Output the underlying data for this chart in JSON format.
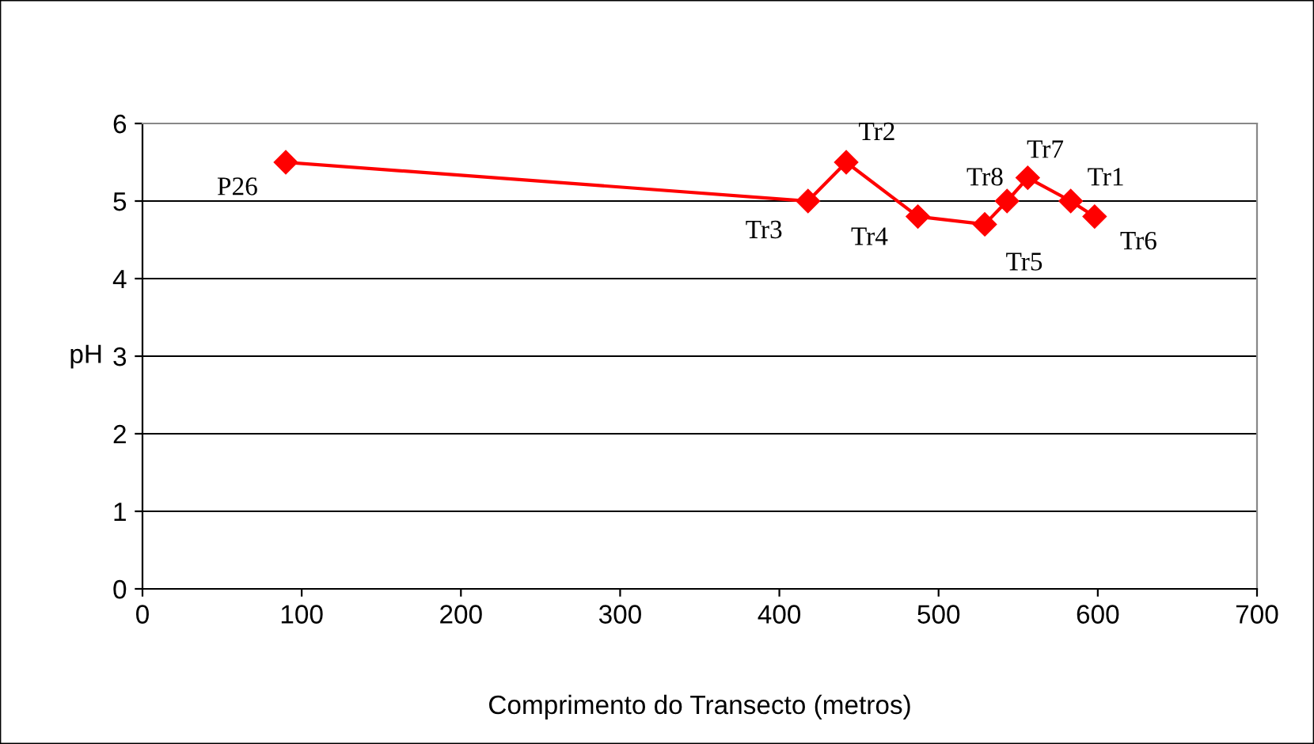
{
  "chart_data": {
    "type": "line",
    "xlabel": "Comprimento do Transecto (metros)",
    "ylabel": "pH",
    "x": [
      90,
      418,
      442,
      487,
      529,
      543,
      556,
      583,
      598
    ],
    "series": [
      {
        "color": "#ff0000",
        "values": [
          5.5,
          5.0,
          5.5,
          4.8,
          4.7,
          5.0,
          5.3,
          5.0,
          4.8
        ]
      }
    ],
    "annotations": [
      {
        "text": "P26",
        "x": 90,
        "y": 5.5
      },
      {
        "text": "Tr3",
        "x": 418,
        "y": 5.0
      },
      {
        "text": "Tr2",
        "x": 442,
        "y": 5.5
      },
      {
        "text": "Tr4",
        "x": 487,
        "y": 4.8
      },
      {
        "text": "Tr5",
        "x": 529,
        "y": 4.7
      },
      {
        "text": "Tr8",
        "x": 543,
        "y": 5.0
      },
      {
        "text": "Tr7",
        "x": 556,
        "y": 5.3
      },
      {
        "text": "Tr1",
        "x": 583,
        "y": 5.0
      },
      {
        "text": "Tr6",
        "x": 598,
        "y": 4.8
      }
    ],
    "xlim": [
      0,
      700
    ],
    "xticks": [
      0,
      100,
      200,
      300,
      400,
      500,
      600,
      700
    ],
    "ylim": [
      0,
      6
    ],
    "yticks": [
      0,
      1,
      2,
      3,
      4,
      5,
      6
    ],
    "grid": "y",
    "marker": "diamond",
    "line_style": "solid",
    "legend": false
  }
}
